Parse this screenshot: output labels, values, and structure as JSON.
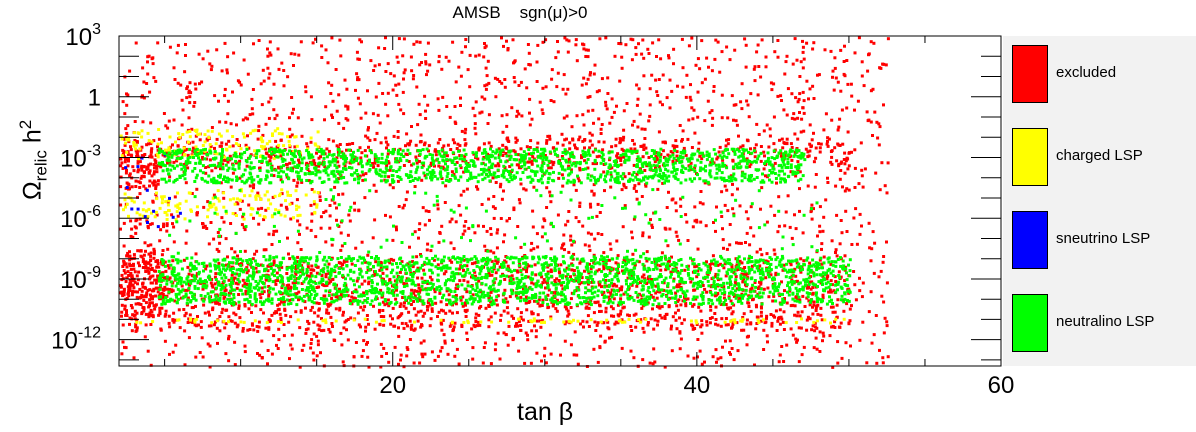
{
  "chart_data": {
    "type": "scatter",
    "title_parts": [
      "AMSB",
      "sgn(μ)>0"
    ],
    "xlabel": "tan β",
    "ylabel_main": "Ω",
    "ylabel_sub": "relic",
    "ylabel_h": "h",
    "ylabel_sup": "2",
    "xlim": [
      2,
      60
    ],
    "ylim_log10": [
      -13.3,
      3
    ],
    "y_log_scale": true,
    "x_ticks": [
      20,
      40,
      60
    ],
    "x_tick_labels": [
      "20",
      "40",
      "60"
    ],
    "y_ticks_log10": [
      3,
      0,
      -3,
      -6,
      -9,
      -12
    ],
    "y_tick_labels": [
      {
        "base": "10",
        "exp": "3"
      },
      {
        "base": "1",
        "exp": ""
      },
      {
        "base": "10",
        "exp": "-3"
      },
      {
        "base": "10",
        "exp": "-6"
      },
      {
        "base": "10",
        "exp": "-9"
      },
      {
        "base": "10",
        "exp": "-12"
      }
    ],
    "grid": false,
    "legend_position": "right",
    "series": [
      {
        "name": "excluded",
        "color": "#ff0000",
        "regions": [
          {
            "x": [
              2,
              52.5
            ],
            "log10_y": [
              -13.3,
              3
            ],
            "note_level": "diffuse"
          },
          {
            "x": [
              2,
              50
            ],
            "log10_y": [
              -3.5,
              -2.0
            ],
            "note_level": "band"
          },
          {
            "x": [
              2,
              50
            ],
            "log10_y": [
              -11.5,
              -8.0
            ],
            "note_level": "band"
          },
          {
            "x": [
              2,
              4.5
            ],
            "log10_y": [
              -4.5,
              -2.5
            ],
            "note_level": "dense"
          },
          {
            "x": [
              2,
              5
            ],
            "log10_y": [
              -10.8,
              -7.5
            ],
            "note_level": "dense"
          }
        ]
      },
      {
        "name": "charged LSP",
        "color": "#ffff00",
        "regions": [
          {
            "x": [
              2,
              15
            ],
            "log10_y": [
              -3.0,
              -1.5
            ],
            "note_level": "band"
          },
          {
            "x": [
              2,
              15
            ],
            "log10_y": [
              -6.0,
              -4.5
            ],
            "note_level": "band"
          },
          {
            "x": [
              2,
              50
            ],
            "log10_y": [
              -11.1,
              -10.9
            ],
            "note_level": "line"
          }
        ]
      },
      {
        "name": "sneutrino LSP",
        "color": "#0000ff",
        "regions": [
          {
            "x": [
              2,
              6
            ],
            "log10_y": [
              -7.5,
              -2.5
            ],
            "note_level": "sparse"
          }
        ]
      },
      {
        "name": "neutralino LSP",
        "color": "#00ff00",
        "regions": [
          {
            "x": [
              4.5,
              47
            ],
            "log10_y": [
              -4.2,
              -2.5
            ],
            "note_level": "dense"
          },
          {
            "x": [
              4.5,
              50
            ],
            "log10_y": [
              -10.2,
              -7.8
            ],
            "note_level": "dense"
          },
          {
            "x": [
              5,
              48
            ],
            "log10_y": [
              -7.8,
              -4.5
            ],
            "note_level": "sparse"
          }
        ]
      }
    ]
  },
  "legend": {
    "items": [
      {
        "label": "excluded",
        "color": "#ff0000"
      },
      {
        "label": "charged LSP",
        "color": "#ffff00"
      },
      {
        "label": "sneutrino LSP",
        "color": "#0000ff"
      },
      {
        "label": "neutralino LSP",
        "color": "#00ff00"
      }
    ]
  }
}
